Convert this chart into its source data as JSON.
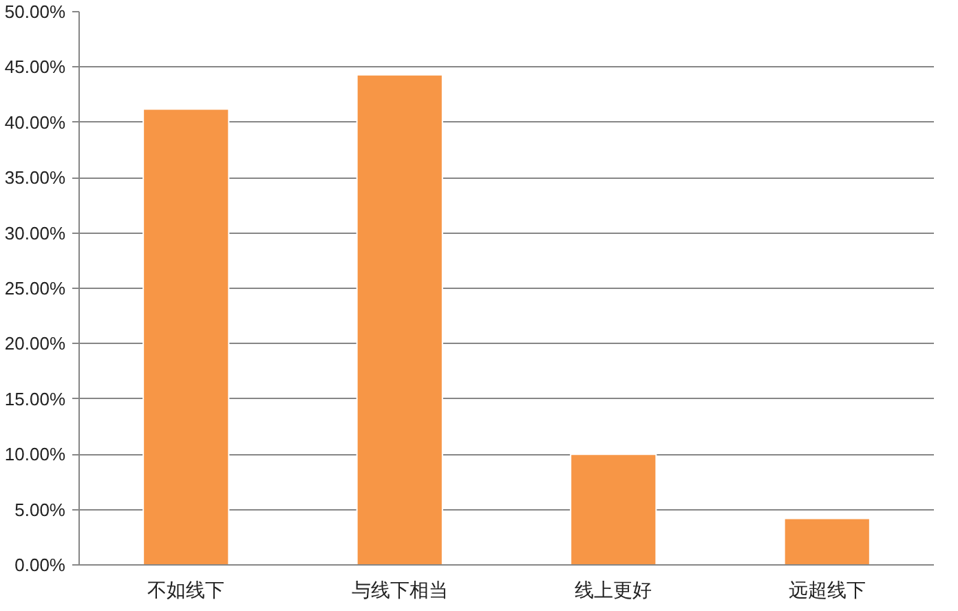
{
  "chart_data": {
    "type": "bar",
    "categories": [
      "不如线下",
      "与线下相当",
      "线上更好",
      "远超线下"
    ],
    "values": [
      41.2,
      44.3,
      10.0,
      4.2
    ],
    "color": "#f79646",
    "ylim": [
      0,
      50
    ],
    "yticks": [
      {
        "value": 0,
        "label": "0.00%"
      },
      {
        "value": 5,
        "label": "5.00%"
      },
      {
        "value": 10,
        "label": "10.00%"
      },
      {
        "value": 15,
        "label": "15.00%"
      },
      {
        "value": 20,
        "label": "20.00%"
      },
      {
        "value": 25,
        "label": "25.00%"
      },
      {
        "value": 30,
        "label": "30.00%"
      },
      {
        "value": 35,
        "label": "35.00%"
      },
      {
        "value": 40,
        "label": "40.00%"
      },
      {
        "value": 45,
        "label": "45.00%"
      },
      {
        "value": 50,
        "label": "50.00%"
      }
    ],
    "grid": "y"
  }
}
